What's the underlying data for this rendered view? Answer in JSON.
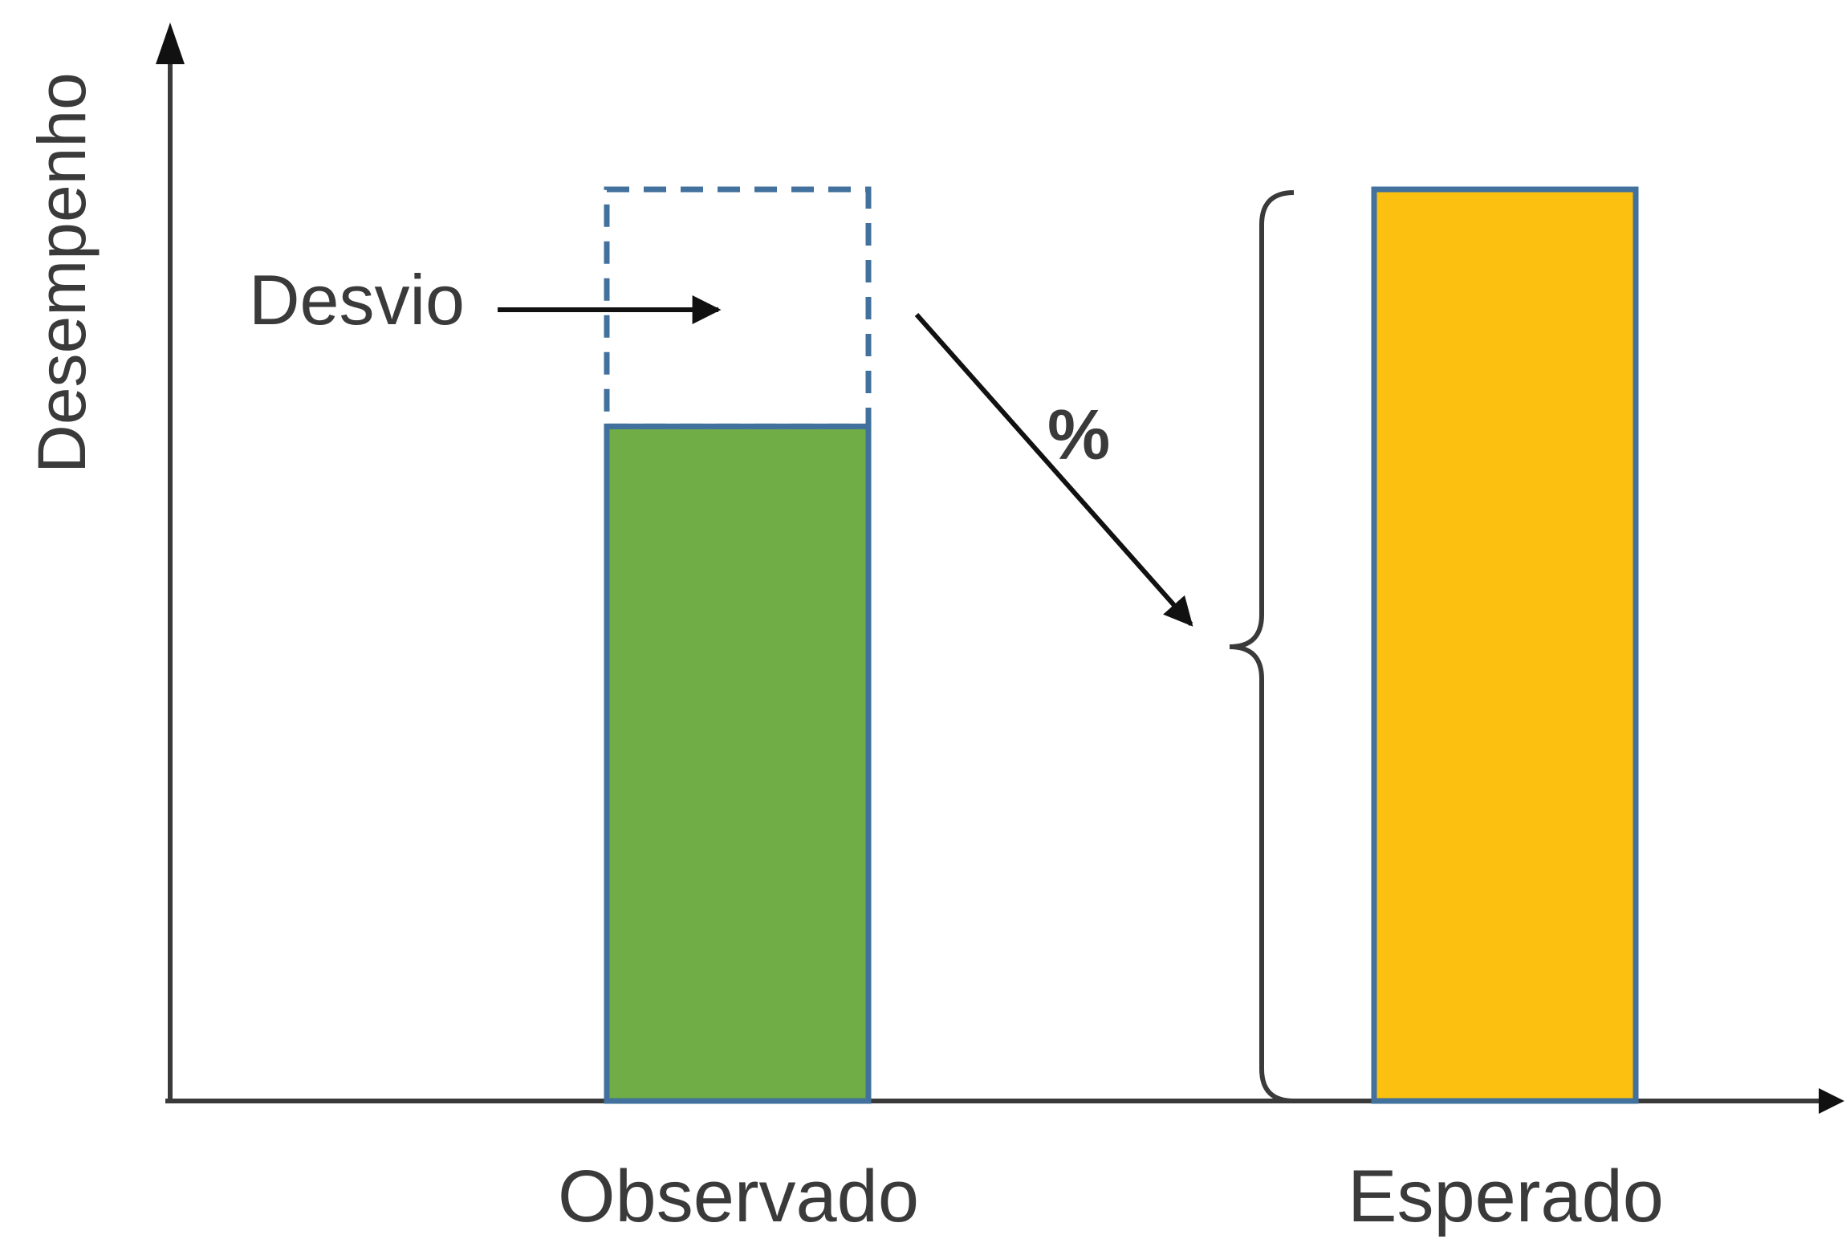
{
  "y_axis_label": "Desempenho",
  "deviation_label": "Desvio",
  "percent_label": "%",
  "bars": [
    {
      "label": "Observado",
      "relative_height": 0.74,
      "color": "#70AD47",
      "outline": "#41719C"
    },
    {
      "label": "Esperado",
      "relative_height": 1.0,
      "color": "#FBC010",
      "outline": "#41719C"
    }
  ],
  "colors": {
    "axis": "#3a3a3a",
    "dashed_outline": "#41719C",
    "arrow": "#111111"
  }
}
